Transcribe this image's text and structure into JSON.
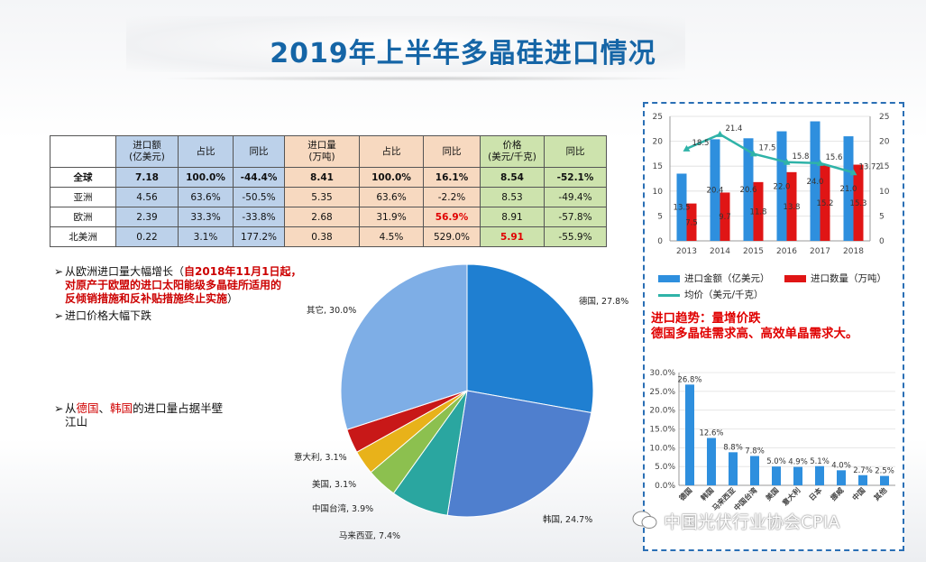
{
  "title": "2019年上半年多晶硅进口情况",
  "table": {
    "headers": [
      "",
      "进口额\n(亿美元)",
      "占比",
      "同比",
      "进口量\n(万吨)",
      "占比",
      "同比",
      "价格\n(美元/千克)",
      "同比"
    ],
    "rows": [
      [
        "全球",
        "7.18",
        "100.0%",
        "-44.4%",
        "8.41",
        "100.0%",
        "16.1%",
        "8.54",
        "-52.1%"
      ],
      [
        "亚洲",
        "4.56",
        "63.6%",
        "-50.5%",
        "5.35",
        "63.6%",
        "-2.2%",
        "8.53",
        "-49.4%"
      ],
      [
        "欧洲",
        "2.39",
        "33.3%",
        "-33.8%",
        "2.68",
        "31.9%",
        "56.9%",
        "8.91",
        "-57.8%"
      ],
      [
        "北美洲",
        "0.22",
        "3.1%",
        "177.2%",
        "0.38",
        "4.5%",
        "529.0%",
        "5.91",
        "-55.9%"
      ]
    ]
  },
  "bullets": {
    "b1_lead": "从欧洲进口量大幅增长（",
    "b1_red1": "自2018年11月1日起，",
    "b1_red2": "对原产于欧盟的进口太阳能级多晶硅所适用的",
    "b1_red3": "反倾销措施和反补贴措施终止实施",
    "b1_tail": "）",
    "b2": "进口价格大幅下跌",
    "b3_pre": "从",
    "b3_de": "德国",
    "b3_sep": "、",
    "b3_kr": "韩国",
    "b3_post": "的进口量占据半壁",
    "b3_line2": "江山"
  },
  "trend_note": {
    "line1": "进口趋势：量增价跌",
    "line2": "德国多晶硅需求高、高效单晶需求大。"
  },
  "watermark": "中国光伏行业协会CPIA",
  "chart_data": [
    {
      "type": "pie",
      "categories": [
        "德国",
        "韩国",
        "马来西亚",
        "中国台湾",
        "美国",
        "意大利",
        "其它"
      ],
      "values": [
        27.8,
        24.7,
        7.4,
        3.9,
        3.1,
        3.1,
        30.0
      ],
      "labels": [
        "德国, 27.8%",
        "韩国, 24.7%",
        "马来西亚, 7.4%",
        "中国台湾, 3.9%",
        "美国, 3.1%",
        "意大利, 3.1%",
        "其它, 30.0%"
      ],
      "colors": [
        "#1f7fd1",
        "#4f7fce",
        "#2aa6a0",
        "#8cc04f",
        "#e8b21a",
        "#c81818",
        "#7eaee6"
      ]
    },
    {
      "type": "bar",
      "categories": [
        "2013",
        "2014",
        "2015",
        "2016",
        "2017",
        "2018"
      ],
      "series": [
        {
          "name": "进口金额（亿美元）",
          "axis": "left",
          "values": [
            13.5,
            20.4,
            20.6,
            22.0,
            24.0,
            21.0
          ],
          "labels": [
            "13.5",
            "20.4",
            "20.6",
            "22.0",
            "24.0",
            "21.0"
          ],
          "color": "#2e8fde"
        },
        {
          "name": "进口数量（万吨）",
          "axis": "left",
          "values": [
            7.5,
            9.7,
            11.8,
            13.8,
            15.2,
            15.3
          ],
          "labels": [
            "7.5",
            "9.7",
            "11.8",
            "13.8",
            "15.2",
            "15.3"
          ],
          "color": "#e01515"
        },
        {
          "name": "均价（美元/千克）",
          "type": "line",
          "axis": "right",
          "values": [
            18.5,
            21.4,
            17.5,
            15.8,
            15.6,
            13.72
          ],
          "labels": [
            "18.5",
            "21.4",
            "17.5",
            "15.8",
            "15.6",
            "13.72"
          ],
          "color": "#2fb3a8"
        }
      ],
      "ylim": [
        0,
        25
      ],
      "y2lim": [
        0,
        25
      ],
      "yticks": [
        "0",
        "5",
        "10",
        "15",
        "20",
        "25"
      ],
      "legend": "bottom"
    },
    {
      "type": "bar",
      "categories": [
        "德国",
        "韩国",
        "马来西亚",
        "中国台湾",
        "美国",
        "意大利",
        "日本",
        "挪威",
        "中国",
        "其他"
      ],
      "values": [
        26.8,
        12.6,
        8.8,
        7.8,
        5.0,
        4.9,
        5.1,
        4.0,
        2.7,
        2.5
      ],
      "labels": [
        "26.8%",
        "12.6%",
        "8.8%",
        "7.8%",
        "5.0%",
        "4.9%",
        "5.1%",
        "4.0%",
        "2.7%",
        "2.5%"
      ],
      "yticks": [
        "0.0%",
        "5.0%",
        "10.0%",
        "15.0%",
        "20.0%",
        "25.0%",
        "30.0%"
      ],
      "ylim": [
        0,
        30
      ],
      "color": "#2e8fde"
    }
  ]
}
